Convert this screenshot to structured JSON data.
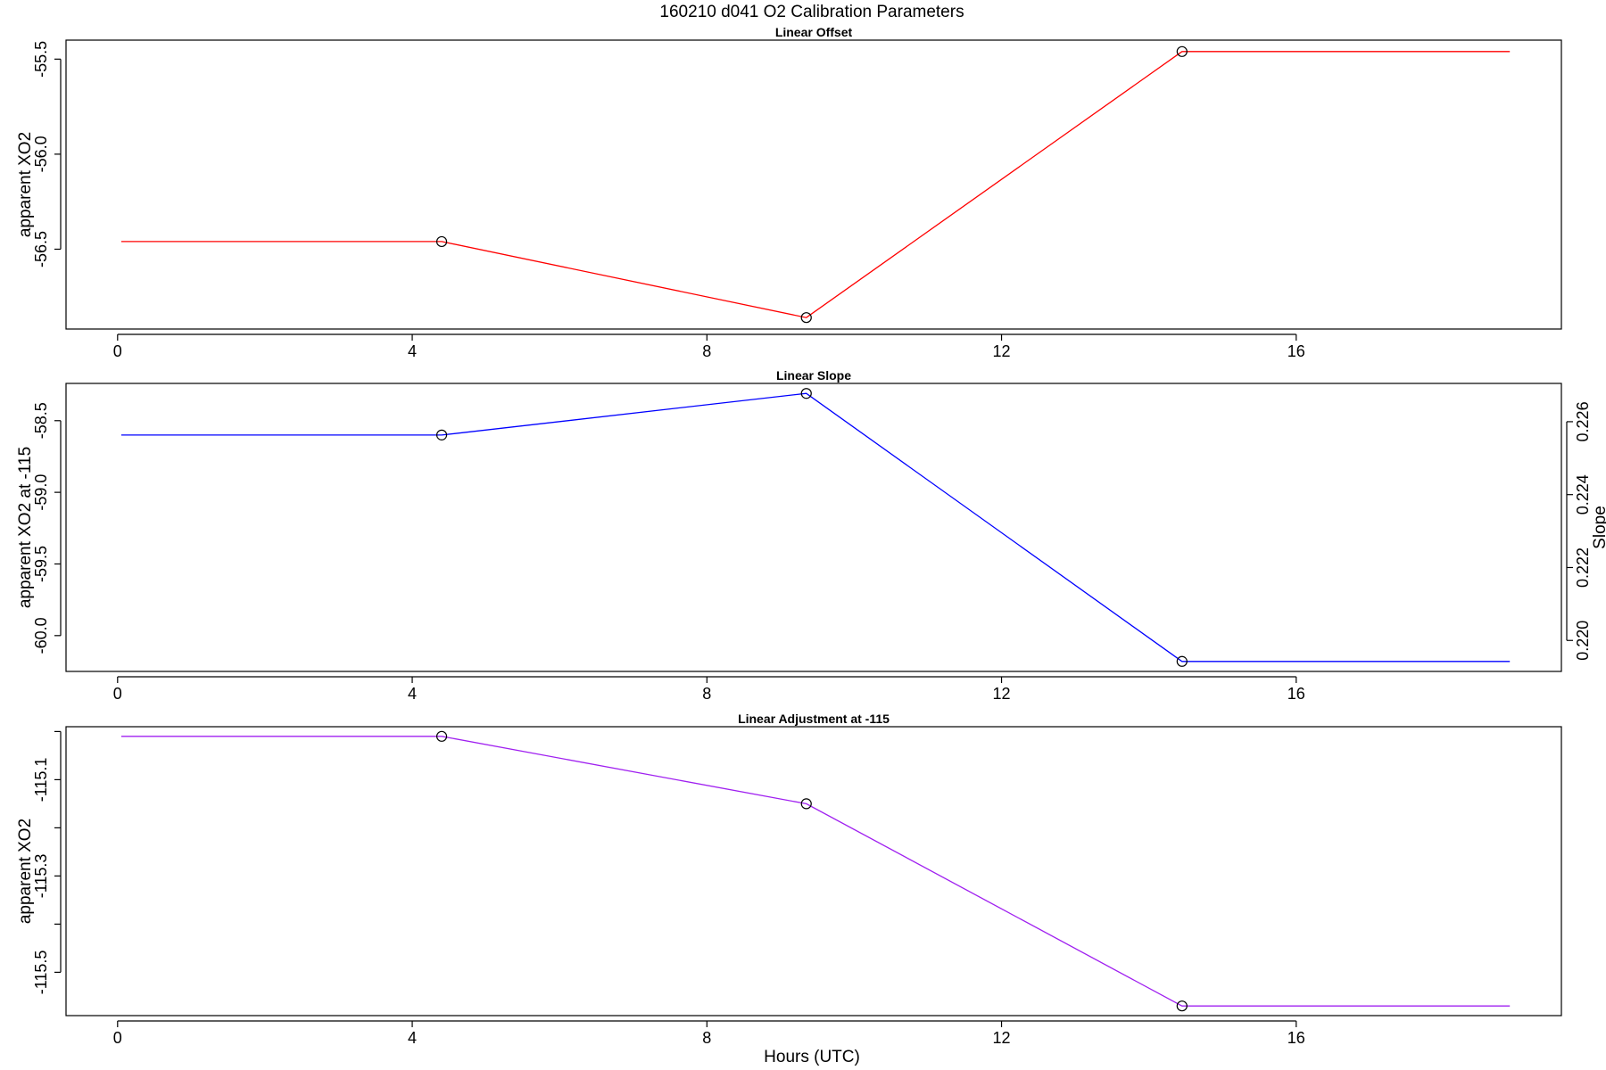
{
  "figure": {
    "title": "160210   d041   O2 Calibration Parameters",
    "xlabel": "Hours (UTC)"
  },
  "chart_data": [
    {
      "type": "line",
      "title": "Linear Offset",
      "xlabel": "",
      "ylabel": "apparent XO2",
      "xlim": [
        -0.7,
        19.6
      ],
      "ylim": [
        -56.92,
        -55.4
      ],
      "x_ticks": [
        0,
        4,
        8,
        12,
        16
      ],
      "x_tick_labels": [
        "0",
        "4",
        "8",
        "12",
        "16"
      ],
      "y_ticks": [
        -56.5,
        -56.0,
        -55.5
      ],
      "y_tick_labels": [
        "-56.5",
        "-56.0",
        "-55.5"
      ],
      "y_minor_ticks": [],
      "grid": false,
      "series": [
        {
          "color": "#ff0000",
          "x": [
            0.05,
            4.4,
            9.35,
            14.45,
            18.9
          ],
          "y": [
            -56.46,
            -56.46,
            -56.86,
            -55.46,
            -55.46
          ],
          "marker_x": [
            4.4,
            9.35,
            14.45
          ],
          "marker_y": [
            -56.46,
            -56.86,
            -55.46
          ]
        }
      ]
    },
    {
      "type": "line",
      "title": "Linear Slope",
      "xlabel": "",
      "ylabel": "apparent XO2 at -115",
      "ylabel_right": "Slope",
      "xlim": [
        -0.7,
        19.6
      ],
      "ylim": [
        -60.25,
        -58.24
      ],
      "x_ticks": [
        0,
        4,
        8,
        12,
        16
      ],
      "x_tick_labels": [
        "0",
        "4",
        "8",
        "12",
        "16"
      ],
      "y_ticks": [
        -60.0,
        -59.5,
        -59.0,
        -58.5
      ],
      "y_tick_labels": [
        "-60.0",
        "-59.5",
        "-59.0",
        "-58.5"
      ],
      "y_minor_ticks": [],
      "y_right_ticks": [
        0.22,
        0.222,
        0.224,
        0.226
      ],
      "y_right_tick_labels": [
        "0.220",
        "0.222",
        "0.224",
        "0.226"
      ],
      "y_right_lim": [
        0.21915,
        0.22705
      ],
      "grid": false,
      "series": [
        {
          "color": "#0000ff",
          "x": [
            0.05,
            4.4,
            9.35,
            14.45,
            18.9
          ],
          "y": [
            -58.6,
            -58.6,
            -58.31,
            -60.18,
            -60.18
          ],
          "marker_x": [
            4.4,
            9.35,
            14.45
          ],
          "marker_y": [
            -58.6,
            -58.31,
            -60.18
          ]
        }
      ]
    },
    {
      "type": "line",
      "title": "Linear Adjustment at -115",
      "xlabel": "",
      "ylabel": "apparent XO2",
      "xlim": [
        -0.7,
        19.6
      ],
      "ylim": [
        -115.59,
        -114.99
      ],
      "x_ticks": [
        0,
        4,
        8,
        12,
        16
      ],
      "x_tick_labels": [
        "0",
        "4",
        "8",
        "12",
        "16"
      ],
      "y_ticks": [
        -115.5,
        -115.3,
        -115.1
      ],
      "y_tick_labels": [
        "-115.5",
        "-115.3",
        "-115.1"
      ],
      "y_minor_ticks": [
        -115.4,
        -115.2,
        -115.0
      ],
      "grid": false,
      "series": [
        {
          "color": "#a020f0",
          "x": [
            0.05,
            4.4,
            9.35,
            14.45,
            18.9
          ],
          "y": [
            -115.01,
            -115.01,
            -115.15,
            -115.57,
            -115.57
          ],
          "marker_x": [
            4.4,
            9.35,
            14.45
          ],
          "marker_y": [
            -115.01,
            -115.15,
            -115.57
          ]
        }
      ]
    }
  ]
}
